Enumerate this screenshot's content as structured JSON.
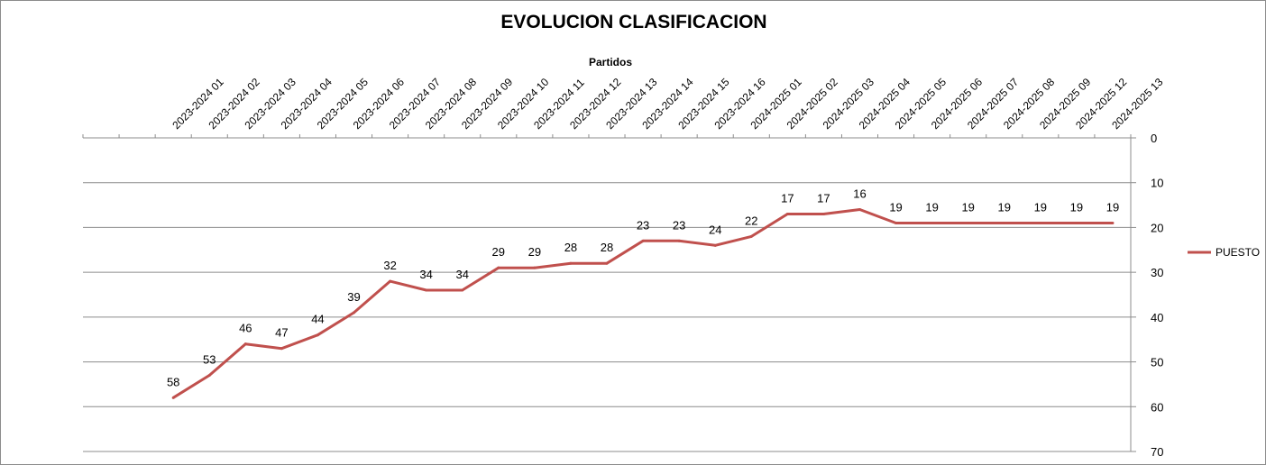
{
  "chart_data": {
    "type": "line",
    "title": "EVOLUCION CLASIFICACION",
    "xlabel": "Partidos",
    "ylabel": "",
    "x_axis_position": "top",
    "y_axis_position": "right",
    "y_reversed": true,
    "ylim": [
      0,
      70
    ],
    "y_ticks": [
      0,
      10,
      20,
      30,
      40,
      50,
      60,
      70
    ],
    "grid": "horizontal",
    "legend_position": "right",
    "categories": [
      "",
      "",
      "2023-2024 01",
      "2023-2024 02",
      "2023-2024 03",
      "2023-2024 04",
      "2023-2024 05",
      "2023-2024 06",
      "2023-2024 07",
      "2023-2024 08",
      "2023-2024 09",
      "2023-2024 10",
      "2023-2024 11",
      "2023-2024 12",
      "2023-2024 13",
      "2023-2024 14",
      "2023-2024 15",
      "2023-2024 16",
      "2024-2025 01",
      "2024-2025 02",
      "2024-2025 03",
      "2024-2025 04",
      "2024-2025 05",
      "2024-2025 06",
      "2024-2025 07",
      "2024-2025 08",
      "2024-2025 09",
      "2024-2025 12",
      "2024-2025 13"
    ],
    "series": [
      {
        "name": "PUESTO",
        "color": "#c0504d",
        "values": [
          null,
          null,
          58,
          53,
          46,
          47,
          44,
          39,
          32,
          34,
          34,
          29,
          29,
          28,
          28,
          23,
          23,
          24,
          22,
          17,
          17,
          16,
          19,
          19,
          19,
          19,
          19,
          19,
          19
        ]
      }
    ]
  }
}
